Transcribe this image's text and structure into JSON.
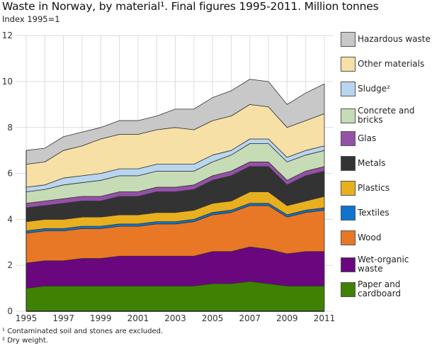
{
  "chart_data": {
    "type": "area",
    "stacked": true,
    "title": "Waste in Norway, by material¹. Final figures 1995-2011. Million tonnes",
    "subtitle": "Index 1995=1",
    "xlabel": "",
    "ylabel": "",
    "ylim": [
      0,
      12
    ],
    "yticks": [
      0,
      2,
      4,
      6,
      8,
      10,
      12
    ],
    "xticks": [
      1995,
      1997,
      1999,
      2001,
      2003,
      2005,
      2007,
      2009,
      2011
    ],
    "grid": true,
    "legend_position": "right",
    "x": [
      1995,
      1996,
      1997,
      1998,
      1999,
      2000,
      2001,
      2002,
      2003,
      2004,
      2005,
      2006,
      2007,
      2008,
      2009,
      2010,
      2011
    ],
    "series": [
      {
        "name": "Paper and cardboard",
        "color": "#3f8203",
        "values": [
          1.0,
          1.1,
          1.1,
          1.1,
          1.1,
          1.1,
          1.1,
          1.1,
          1.1,
          1.1,
          1.2,
          1.2,
          1.3,
          1.2,
          1.1,
          1.1,
          1.1
        ]
      },
      {
        "name": "Wet-organic waste",
        "color": "#6a077f",
        "values": [
          1.1,
          1.1,
          1.1,
          1.2,
          1.2,
          1.3,
          1.3,
          1.3,
          1.3,
          1.3,
          1.4,
          1.4,
          1.5,
          1.5,
          1.4,
          1.5,
          1.5
        ]
      },
      {
        "name": "Wood",
        "color": "#e97826",
        "values": [
          1.3,
          1.3,
          1.3,
          1.3,
          1.3,
          1.3,
          1.3,
          1.4,
          1.4,
          1.5,
          1.6,
          1.7,
          1.8,
          1.9,
          1.6,
          1.7,
          1.8
        ]
      },
      {
        "name": "Textiles",
        "color": "#0f74cf",
        "values": [
          0.1,
          0.1,
          0.1,
          0.1,
          0.1,
          0.1,
          0.1,
          0.1,
          0.1,
          0.1,
          0.1,
          0.1,
          0.1,
          0.1,
          0.1,
          0.1,
          0.1
        ]
      },
      {
        "name": "Plastics",
        "color": "#e8af1f",
        "values": [
          0.4,
          0.4,
          0.4,
          0.4,
          0.4,
          0.4,
          0.4,
          0.4,
          0.4,
          0.4,
          0.4,
          0.4,
          0.5,
          0.5,
          0.4,
          0.4,
          0.5
        ]
      },
      {
        "name": "Metals",
        "color": "#333333",
        "values": [
          0.6,
          0.6,
          0.7,
          0.7,
          0.7,
          0.8,
          0.8,
          0.9,
          0.9,
          0.9,
          1.0,
          1.1,
          1.1,
          1.1,
          0.9,
          1.1,
          1.1
        ]
      },
      {
        "name": "Glas",
        "color": "#9550a8",
        "values": [
          0.2,
          0.2,
          0.2,
          0.2,
          0.2,
          0.2,
          0.2,
          0.2,
          0.2,
          0.2,
          0.2,
          0.2,
          0.2,
          0.2,
          0.2,
          0.2,
          0.2
        ]
      },
      {
        "name": "Concrete and bricks",
        "color": "#c6dcb6",
        "values": [
          0.5,
          0.5,
          0.6,
          0.6,
          0.7,
          0.7,
          0.7,
          0.7,
          0.7,
          0.6,
          0.6,
          0.7,
          0.8,
          0.8,
          0.8,
          0.7,
          0.7
        ]
      },
      {
        "name": "Sludge²",
        "color": "#b9d6f0",
        "values": [
          0.2,
          0.2,
          0.3,
          0.3,
          0.3,
          0.3,
          0.3,
          0.3,
          0.3,
          0.3,
          0.3,
          0.2,
          0.2,
          0.2,
          0.2,
          0.2,
          0.2
        ]
      },
      {
        "name": "Other materials",
        "color": "#f6e0a6",
        "values": [
          1.0,
          1.0,
          1.2,
          1.3,
          1.5,
          1.5,
          1.5,
          1.5,
          1.6,
          1.5,
          1.5,
          1.5,
          1.5,
          1.4,
          1.3,
          1.3,
          1.4
        ]
      },
      {
        "name": "Hazardous waste",
        "color": "#c8c8c8",
        "values": [
          0.6,
          0.6,
          0.6,
          0.6,
          0.5,
          0.6,
          0.6,
          0.6,
          0.8,
          0.9,
          1.0,
          1.1,
          1.1,
          1.1,
          1.0,
          1.2,
          1.3
        ]
      }
    ],
    "footnotes": [
      "¹ Contaminated soil and stones are excluded.",
      "² Dry weight."
    ]
  }
}
